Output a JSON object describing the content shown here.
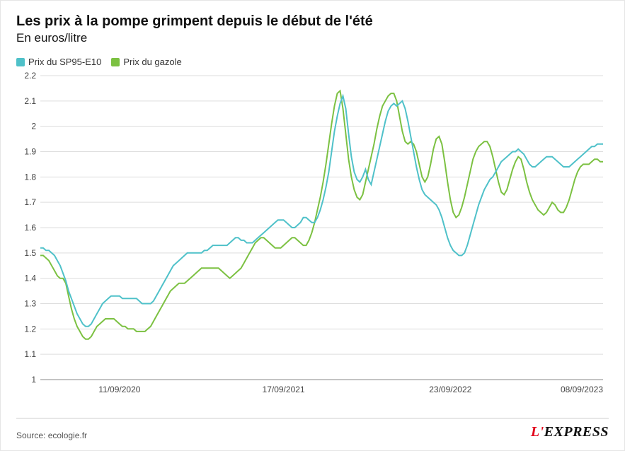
{
  "title": "Les prix à la pompe grimpent depuis le début de l'été",
  "subtitle": "En euros/litre",
  "source_label": "Source: ecologie.fr",
  "brand": {
    "prefix": "L'",
    "rest": "EXPRESS"
  },
  "chart": {
    "type": "line",
    "background_color": "#ffffff",
    "grid_color": "#dddddd",
    "axis_text_color": "#444444",
    "line_width": 2,
    "ylim": [
      1,
      2.2
    ],
    "ytick_step": 0.1,
    "yticks": [
      1,
      1.1,
      1.2,
      1.3,
      1.4,
      1.5,
      1.6,
      1.7,
      1.8,
      1.9,
      2,
      2.1,
      2.2
    ],
    "x_n": 200,
    "xticks": [
      {
        "i": 28,
        "label": "11/09/2020"
      },
      {
        "i": 86,
        "label": "17/09/2021"
      },
      {
        "i": 145,
        "label": "23/09/2022"
      },
      {
        "i": 199,
        "label": "08/09/2023"
      }
    ],
    "legend": [
      {
        "key": "sp95",
        "label": "Prix du SP95-E10",
        "color": "#4fc1c9"
      },
      {
        "key": "gazole",
        "label": "Prix du gazole",
        "color": "#7cc142"
      }
    ],
    "series": {
      "sp95": {
        "color": "#4fc1c9",
        "values": [
          1.52,
          1.52,
          1.51,
          1.51,
          1.5,
          1.49,
          1.47,
          1.45,
          1.42,
          1.39,
          1.35,
          1.32,
          1.29,
          1.26,
          1.24,
          1.22,
          1.21,
          1.21,
          1.22,
          1.24,
          1.26,
          1.28,
          1.3,
          1.31,
          1.32,
          1.33,
          1.33,
          1.33,
          1.33,
          1.32,
          1.32,
          1.32,
          1.32,
          1.32,
          1.32,
          1.31,
          1.3,
          1.3,
          1.3,
          1.3,
          1.31,
          1.33,
          1.35,
          1.37,
          1.39,
          1.41,
          1.43,
          1.45,
          1.46,
          1.47,
          1.48,
          1.49,
          1.5,
          1.5,
          1.5,
          1.5,
          1.5,
          1.5,
          1.51,
          1.51,
          1.52,
          1.53,
          1.53,
          1.53,
          1.53,
          1.53,
          1.53,
          1.54,
          1.55,
          1.56,
          1.56,
          1.55,
          1.55,
          1.54,
          1.54,
          1.54,
          1.55,
          1.56,
          1.57,
          1.58,
          1.59,
          1.6,
          1.61,
          1.62,
          1.63,
          1.63,
          1.63,
          1.62,
          1.61,
          1.6,
          1.6,
          1.61,
          1.62,
          1.64,
          1.64,
          1.63,
          1.62,
          1.62,
          1.64,
          1.67,
          1.71,
          1.76,
          1.82,
          1.9,
          1.98,
          2.04,
          2.09,
          2.12,
          2.07,
          1.97,
          1.88,
          1.82,
          1.79,
          1.78,
          1.8,
          1.83,
          1.79,
          1.77,
          1.82,
          1.87,
          1.92,
          1.97,
          2.02,
          2.06,
          2.08,
          2.09,
          2.08,
          2.09,
          2.1,
          2.07,
          2.02,
          1.96,
          1.9,
          1.84,
          1.79,
          1.75,
          1.73,
          1.72,
          1.71,
          1.7,
          1.69,
          1.67,
          1.64,
          1.6,
          1.56,
          1.53,
          1.51,
          1.5,
          1.49,
          1.49,
          1.5,
          1.53,
          1.57,
          1.61,
          1.65,
          1.69,
          1.72,
          1.75,
          1.77,
          1.79,
          1.8,
          1.82,
          1.84,
          1.86,
          1.87,
          1.88,
          1.89,
          1.9,
          1.9,
          1.91,
          1.9,
          1.89,
          1.87,
          1.85,
          1.84,
          1.84,
          1.85,
          1.86,
          1.87,
          1.88,
          1.88,
          1.88,
          1.87,
          1.86,
          1.85,
          1.84,
          1.84,
          1.84,
          1.85,
          1.86,
          1.87,
          1.88,
          1.89,
          1.9,
          1.91,
          1.92,
          1.92,
          1.93,
          1.93,
          1.93
        ]
      },
      "gazole": {
        "color": "#7cc142",
        "values": [
          1.49,
          1.49,
          1.48,
          1.47,
          1.45,
          1.43,
          1.41,
          1.4,
          1.4,
          1.38,
          1.33,
          1.28,
          1.24,
          1.21,
          1.19,
          1.17,
          1.16,
          1.16,
          1.17,
          1.19,
          1.21,
          1.22,
          1.23,
          1.24,
          1.24,
          1.24,
          1.24,
          1.23,
          1.22,
          1.21,
          1.21,
          1.2,
          1.2,
          1.2,
          1.19,
          1.19,
          1.19,
          1.19,
          1.2,
          1.21,
          1.23,
          1.25,
          1.27,
          1.29,
          1.31,
          1.33,
          1.35,
          1.36,
          1.37,
          1.38,
          1.38,
          1.38,
          1.39,
          1.4,
          1.41,
          1.42,
          1.43,
          1.44,
          1.44,
          1.44,
          1.44,
          1.44,
          1.44,
          1.44,
          1.43,
          1.42,
          1.41,
          1.4,
          1.41,
          1.42,
          1.43,
          1.44,
          1.46,
          1.48,
          1.5,
          1.52,
          1.54,
          1.55,
          1.56,
          1.56,
          1.55,
          1.54,
          1.53,
          1.52,
          1.52,
          1.52,
          1.53,
          1.54,
          1.55,
          1.56,
          1.56,
          1.55,
          1.54,
          1.53,
          1.53,
          1.55,
          1.58,
          1.62,
          1.67,
          1.72,
          1.78,
          1.85,
          1.93,
          2.01,
          2.08,
          2.13,
          2.14,
          2.07,
          1.97,
          1.87,
          1.8,
          1.75,
          1.72,
          1.71,
          1.73,
          1.78,
          1.83,
          1.88,
          1.93,
          1.99,
          2.04,
          2.08,
          2.1,
          2.12,
          2.13,
          2.13,
          2.1,
          2.04,
          1.98,
          1.94,
          1.93,
          1.94,
          1.93,
          1.9,
          1.85,
          1.8,
          1.78,
          1.8,
          1.85,
          1.91,
          1.95,
          1.96,
          1.93,
          1.86,
          1.78,
          1.71,
          1.66,
          1.64,
          1.65,
          1.68,
          1.72,
          1.77,
          1.82,
          1.87,
          1.9,
          1.92,
          1.93,
          1.94,
          1.94,
          1.92,
          1.88,
          1.83,
          1.78,
          1.74,
          1.73,
          1.75,
          1.79,
          1.83,
          1.86,
          1.88,
          1.87,
          1.83,
          1.78,
          1.74,
          1.71,
          1.69,
          1.67,
          1.66,
          1.65,
          1.66,
          1.68,
          1.7,
          1.69,
          1.67,
          1.66,
          1.66,
          1.68,
          1.71,
          1.75,
          1.79,
          1.82,
          1.84,
          1.85,
          1.85,
          1.85,
          1.86,
          1.87,
          1.87,
          1.86,
          1.86
        ]
      }
    }
  }
}
